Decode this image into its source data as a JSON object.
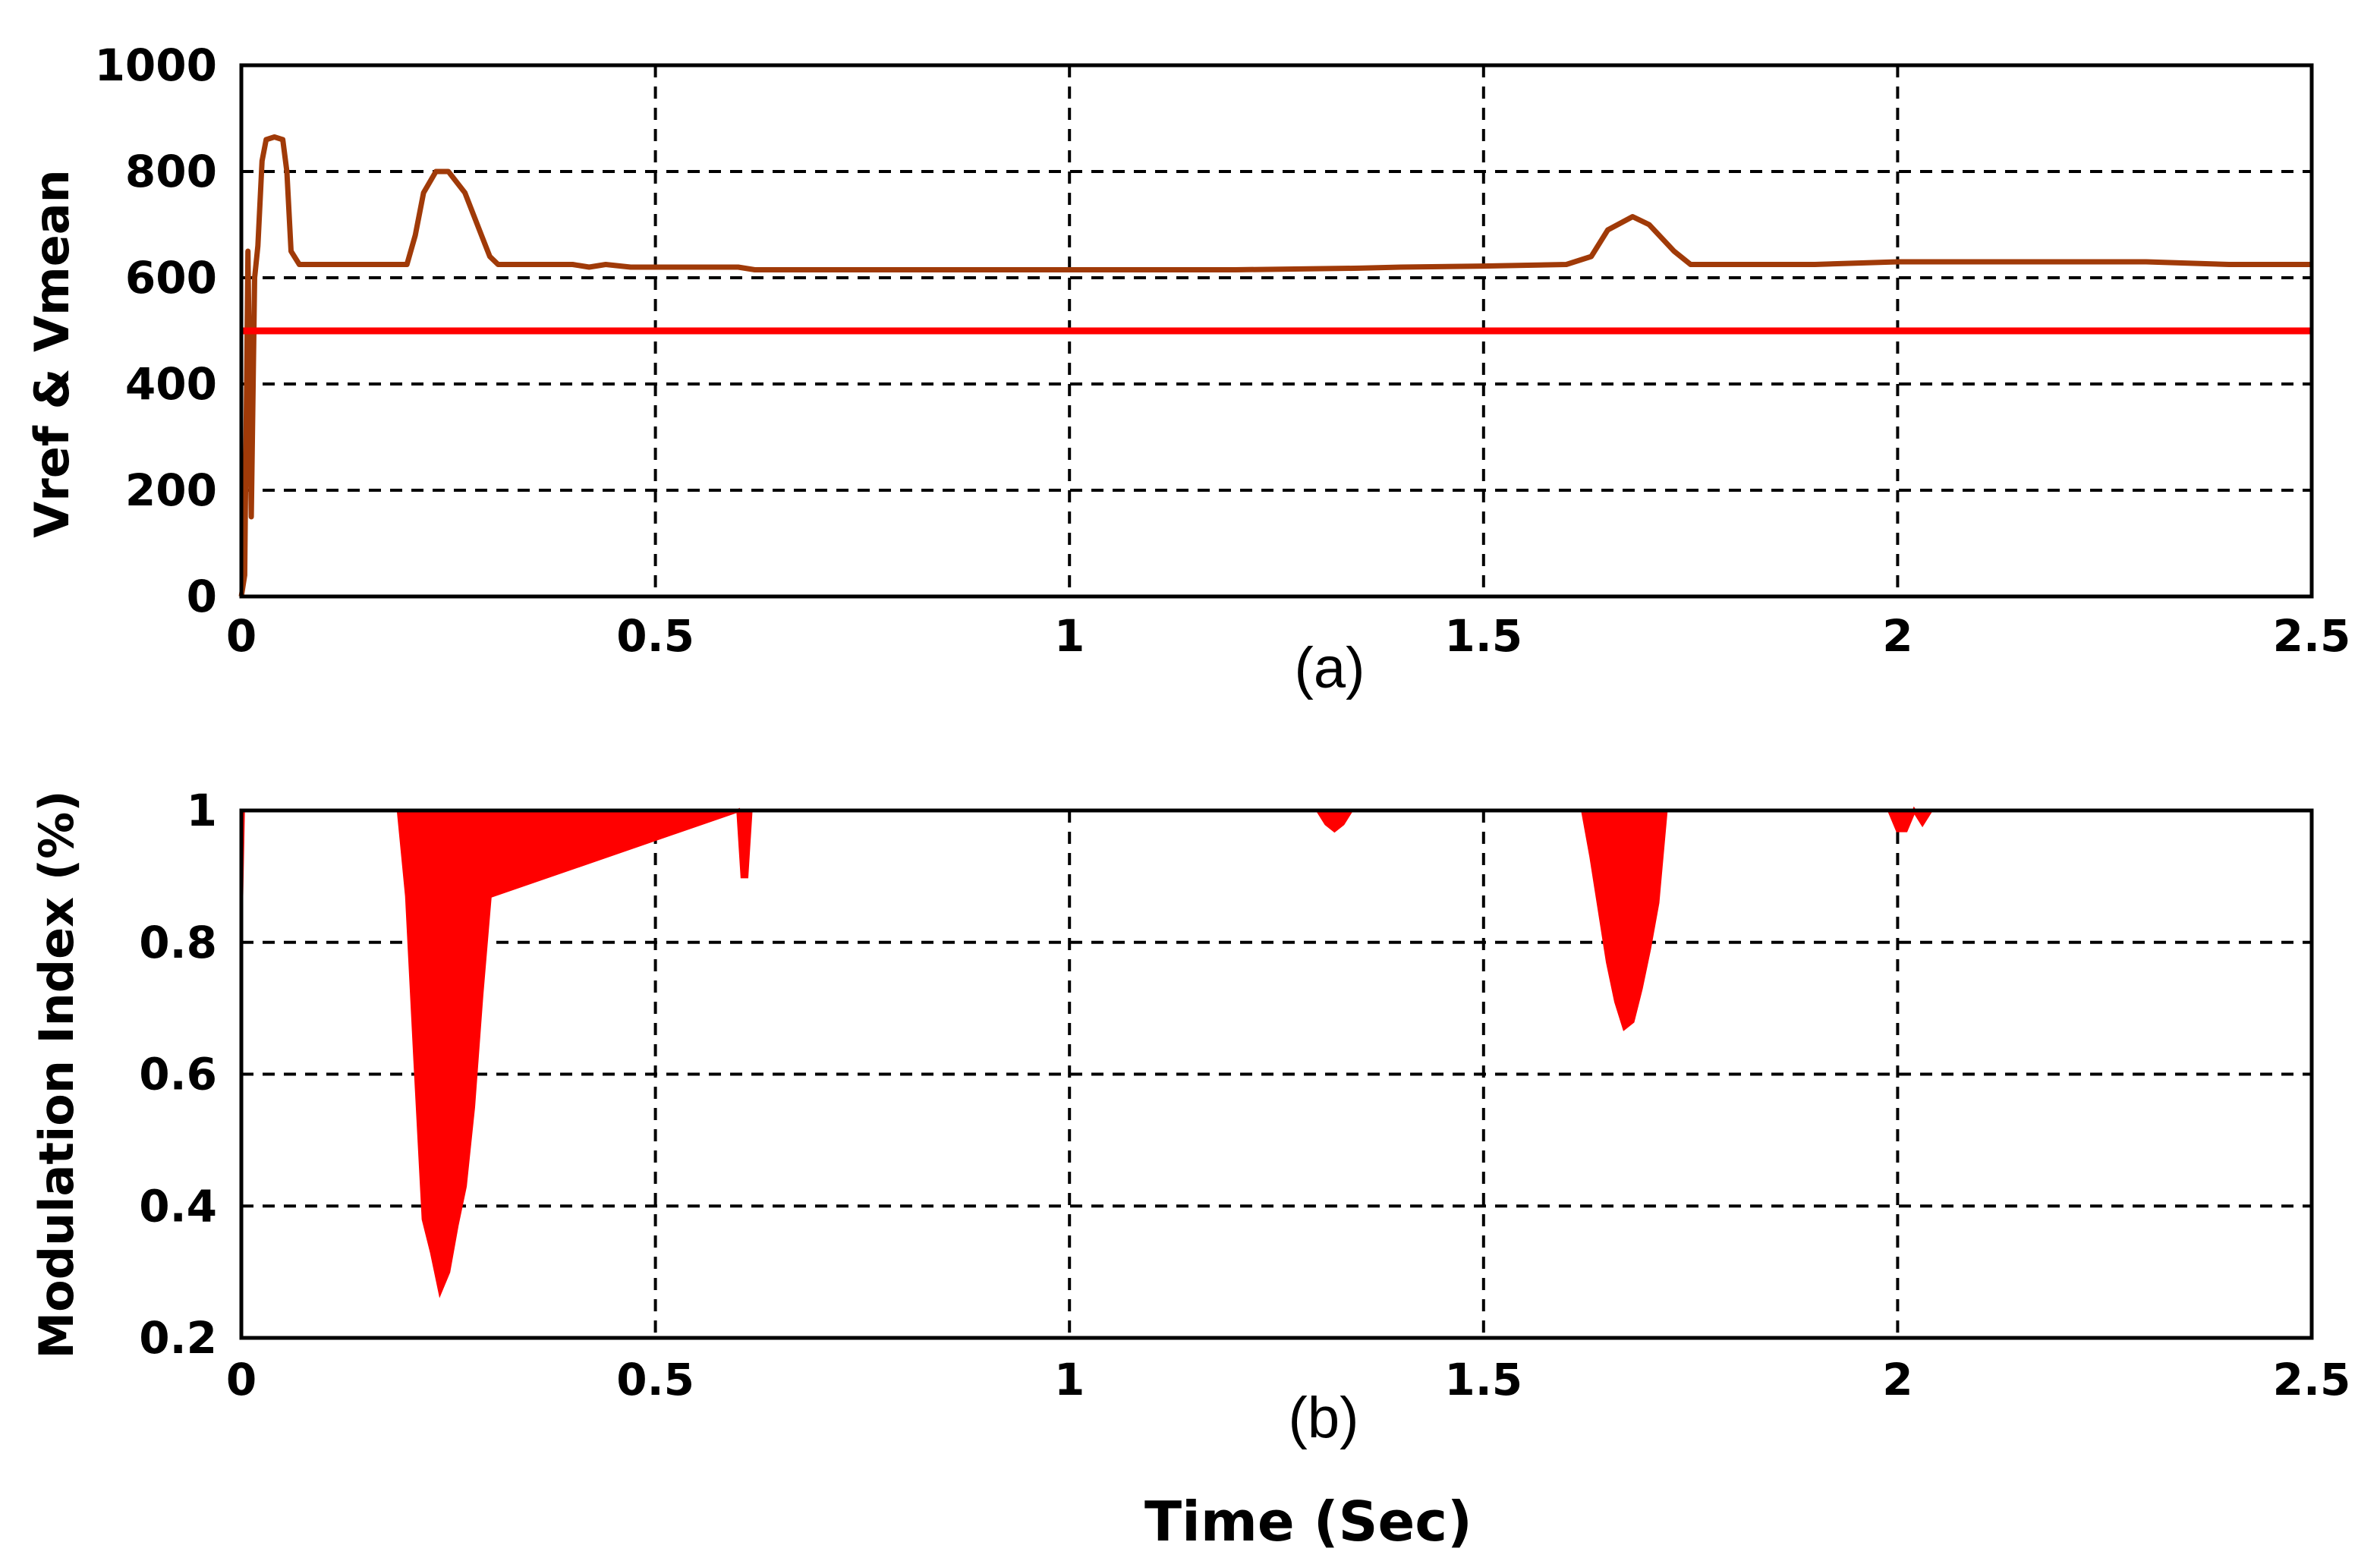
{
  "chart_data": [
    {
      "type": "line",
      "panel_label": "(a)",
      "ylabel": "Vref & Vmean",
      "xlim": [
        0,
        2.5
      ],
      "ylim": [
        0,
        1000
      ],
      "x_ticks": [
        "0",
        "0.5",
        "1",
        "1.5",
        "2",
        "2.5"
      ],
      "y_ticks": [
        "0",
        "200",
        "400",
        "600",
        "800",
        "1000"
      ],
      "grid": true,
      "series": [
        {
          "color": "#a03a08",
          "x": [
            0,
            0.004,
            0.008,
            0.012,
            0.016,
            0.02,
            0.025,
            0.03,
            0.04,
            0.05,
            0.055,
            0.06,
            0.07,
            0.075,
            0.08,
            0.1,
            0.15,
            0.2,
            0.21,
            0.22,
            0.235,
            0.25,
            0.27,
            0.29,
            0.3,
            0.31,
            0.33,
            0.4,
            0.42,
            0.44,
            0.47,
            0.5,
            0.55,
            0.6,
            0.62,
            0.64,
            0.8,
            1.0,
            1.2,
            1.35,
            1.4,
            1.5,
            1.6,
            1.63,
            1.65,
            1.68,
            1.7,
            1.73,
            1.75,
            1.8,
            1.9,
            2.0,
            2.1,
            2.2,
            2.3,
            2.4,
            2.5
          ],
          "y": [
            0,
            40,
            650,
            150,
            600,
            660,
            820,
            860,
            865,
            860,
            800,
            650,
            625,
            625,
            625,
            625,
            625,
            625,
            680,
            760,
            800,
            800,
            760,
            680,
            640,
            625,
            625,
            625,
            620,
            625,
            620,
            620,
            620,
            620,
            615,
            615,
            615,
            615,
            615,
            618,
            620,
            622,
            625,
            640,
            690,
            715,
            700,
            650,
            625,
            625,
            625,
            630,
            630,
            630,
            630,
            625,
            625
          ]
        },
        {
          "color": "#ff0000",
          "x": [
            0,
            2.5
          ],
          "y": [
            500,
            500
          ]
        }
      ]
    },
    {
      "type": "area",
      "panel_label": "(b)",
      "ylabel": "Modulation Index (%)",
      "xlabel": "Time (Sec)",
      "xlim": [
        0,
        2.5
      ],
      "ylim": [
        0.2,
        1
      ],
      "x_ticks": [
        "0",
        "0.5",
        "1",
        "1.5",
        "2",
        "2.5"
      ],
      "y_ticks": [
        "0.2",
        "0.4",
        "0.6",
        "0.8",
        "1"
      ],
      "grid": true,
      "series": [
        {
          "color": "#ff0000",
          "x": [
            0,
            0.002,
            0.01,
            0.19,
            0.2,
            0.21,
            0.22,
            0.23,
            0.24,
            0.25,
            0.26,
            0.27,
            0.28,
            0.29,
            0.3,
            0.6,
            0.605,
            0.61,
            0.615,
            1.3,
            1.31,
            1.32,
            1.33,
            1.34,
            1.35,
            1.62,
            1.63,
            1.64,
            1.65,
            1.66,
            1.67,
            1.68,
            1.69,
            1.7,
            1.71,
            1.72,
            1.99,
            2.0,
            2.01,
            2.02,
            2.03,
            2.04,
            2.5
          ],
          "y": [
            0.87,
            1.0,
            1.0,
            1.0,
            0.87,
            0.62,
            0.38,
            0.33,
            0.27,
            0.3,
            0.37,
            0.43,
            0.55,
            0.72,
            0.87,
            1.0,
            0.9,
            0.9,
            1.0,
            1.0,
            0.98,
            0.97,
            0.98,
            1.0,
            1.0,
            1.0,
            0.93,
            0.85,
            0.77,
            0.71,
            0.67,
            0.68,
            0.73,
            0.79,
            0.86,
            1.0,
            1.0,
            0.97,
            0.97,
            1.0,
            0.98,
            1.0,
            1.0
          ]
        }
      ]
    }
  ]
}
